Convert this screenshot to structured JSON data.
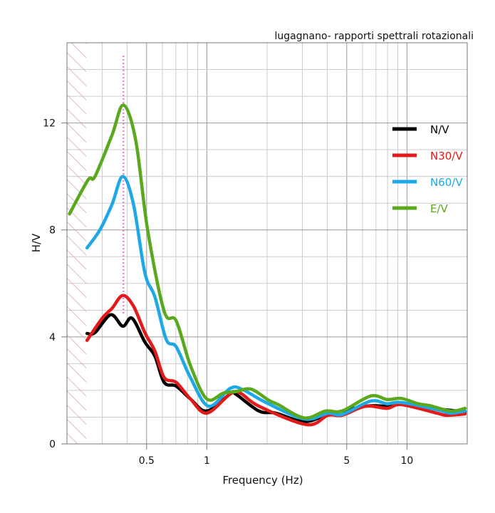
{
  "chart_data": {
    "type": "line",
    "title": "lugagnano- rapporti spettrali rotazionali",
    "xlabel": "Frequency (Hz)",
    "ylabel": "H/V",
    "xscale": "log",
    "xlim": [
      0.2,
      20
    ],
    "ylim": [
      0,
      15
    ],
    "xticks": [
      {
        "v": 0.5,
        "label": "0.5"
      },
      {
        "v": 1,
        "label": "1"
      },
      {
        "v": 5,
        "label": "5"
      },
      {
        "v": 10,
        "label": "10"
      }
    ],
    "yticks": [
      {
        "v": 0,
        "label": "0"
      },
      {
        "v": 4,
        "label": "4"
      },
      {
        "v": 8,
        "label": "8"
      },
      {
        "v": 12,
        "label": "12"
      }
    ],
    "grid": true,
    "legend_position": "right",
    "excluded_band": [
      0.2,
      0.25
    ],
    "peak_marker_frequency": 0.383,
    "peak_marker_color": "#e88ad0",
    "series": [
      {
        "name": "N/V",
        "color": "#000000",
        "x": [
          0.252,
          0.276,
          0.331,
          0.38,
          0.423,
          0.49,
          0.55,
          0.612,
          0.703,
          0.828,
          1.0,
          1.31,
          1.39,
          1.82,
          2.21,
          3.07,
          4.03,
          6.22,
          7.96,
          9.37,
          12.4,
          19.5
        ],
        "y": [
          4.13,
          4.16,
          4.83,
          4.4,
          4.7,
          3.81,
          3.28,
          2.3,
          2.16,
          1.68,
          1.23,
          1.87,
          1.87,
          1.23,
          1.15,
          0.83,
          1.1,
          1.41,
          1.41,
          1.5,
          1.36,
          1.2
        ]
      },
      {
        "name": "N30/V",
        "color": "#e31a1a",
        "x": [
          0.252,
          0.3,
          0.336,
          0.38,
          0.43,
          0.49,
          0.55,
          0.612,
          0.703,
          0.828,
          1.0,
          1.31,
          1.47,
          1.82,
          3.15,
          4.03,
          4.74,
          6.22,
          7.96,
          9.37,
          14.1,
          15.8,
          19.5
        ],
        "y": [
          3.87,
          4.7,
          5.07,
          5.55,
          5.15,
          4.16,
          3.47,
          2.48,
          2.3,
          1.68,
          1.15,
          1.87,
          1.9,
          1.41,
          0.72,
          1.07,
          1.07,
          1.41,
          1.33,
          1.47,
          1.15,
          1.07,
          1.12
        ]
      },
      {
        "name": "N60/V",
        "color": "#1ea8e6",
        "x": [
          0.252,
          0.292,
          0.336,
          0.38,
          0.43,
          0.49,
          0.55,
          0.627,
          0.703,
          0.828,
          1.02,
          1.31,
          1.51,
          1.97,
          3.07,
          4.03,
          4.74,
          6.58,
          7.96,
          9.37,
          14.1,
          16.6,
          19.5
        ],
        "y": [
          7.33,
          8.0,
          8.96,
          10.0,
          8.96,
          6.4,
          5.5,
          3.9,
          3.63,
          2.48,
          1.41,
          2.08,
          2.03,
          1.55,
          0.93,
          1.15,
          1.1,
          1.6,
          1.5,
          1.55,
          1.28,
          1.15,
          1.23
        ]
      },
      {
        "name": "E/V",
        "color": "#5aa81e",
        "x": [
          0.206,
          0.255,
          0.276,
          0.336,
          0.383,
          0.441,
          0.506,
          0.612,
          0.703,
          0.828,
          1.0,
          1.21,
          1.39,
          1.66,
          2.04,
          2.27,
          3.07,
          3.92,
          4.74,
          6.58,
          7.96,
          9.37,
          11.4,
          13.0,
          16.6,
          19.5
        ],
        "y": [
          8.6,
          9.87,
          10.0,
          11.55,
          12.67,
          11.36,
          8.0,
          4.96,
          4.6,
          2.93,
          1.68,
          1.9,
          1.95,
          2.05,
          1.63,
          1.47,
          0.97,
          1.23,
          1.23,
          1.79,
          1.66,
          1.7,
          1.5,
          1.43,
          1.23,
          1.33
        ]
      }
    ]
  }
}
